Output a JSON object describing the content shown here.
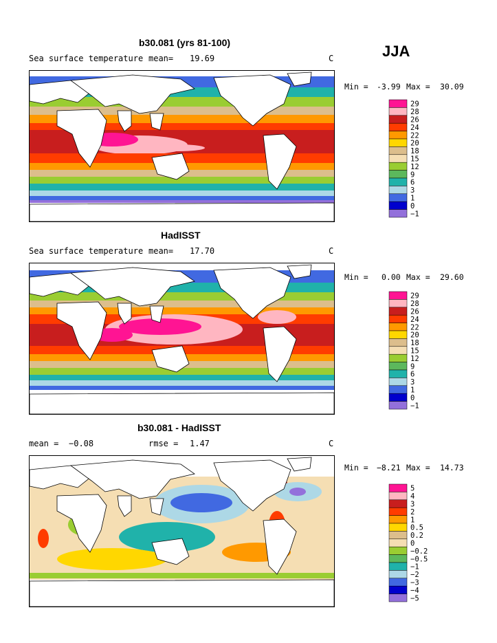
{
  "season": "JJA",
  "chart_data": [
    {
      "type": "heatmap",
      "title": "b30.081 (yrs 81-100)",
      "variable": "Sea surface temperature",
      "mean_label": "mean=",
      "mean_value": "19.69",
      "units": "C",
      "min_label": "Min =",
      "min_value": "-3.99",
      "max_label": "Max =",
      "max_value": "30.09",
      "legend": {
        "levels": [
          "29",
          "28",
          "26",
          "24",
          "22",
          "20",
          "18",
          "15",
          "12",
          "9",
          "6",
          "3",
          "1",
          "0",
          "−1"
        ],
        "colors": [
          "#ff1493",
          "#ffb6c1",
          "#c81e1e",
          "#ff3c00",
          "#ff9900",
          "#ffd700",
          "#dcbe8c",
          "#f5deb3",
          "#9acd32",
          "#5cb85c",
          "#20b2aa",
          "#add8e6",
          "#4169e1",
          "#0000cd",
          "#9370db"
        ]
      }
    },
    {
      "type": "heatmap",
      "title": "HadISST",
      "variable": "Sea surface temperature",
      "mean_label": "mean=",
      "mean_value": "17.70",
      "units": "C",
      "min_label": "Min =",
      "min_value": "0.00",
      "max_label": "Max =",
      "max_value": "29.60",
      "legend": {
        "levels": [
          "29",
          "28",
          "26",
          "24",
          "22",
          "20",
          "18",
          "15",
          "12",
          "9",
          "6",
          "3",
          "1",
          "0",
          "−1"
        ],
        "colors": [
          "#ff1493",
          "#ffb6c1",
          "#c81e1e",
          "#ff3c00",
          "#ff9900",
          "#ffd700",
          "#dcbe8c",
          "#f5deb3",
          "#9acd32",
          "#5cb85c",
          "#20b2aa",
          "#add8e6",
          "#4169e1",
          "#0000cd",
          "#9370db"
        ]
      }
    },
    {
      "type": "heatmap",
      "title": "b30.081 - HadISST",
      "mean_label": "mean =",
      "mean_value": "−0.08",
      "rmse_label": "rmse =",
      "rmse_value": "1.47",
      "units": "C",
      "min_label": "Min =",
      "min_value": "−8.21",
      "max_label": "Max =",
      "max_value": "14.73",
      "legend": {
        "levels": [
          "5",
          "4",
          "3",
          "2",
          "1",
          "0.5",
          "0.2",
          "0",
          "−0.2",
          "−0.5",
          "−1",
          "−2",
          "−3",
          "−4",
          "−5"
        ],
        "colors": [
          "#ff1493",
          "#ffb6c1",
          "#c81e1e",
          "#ff3c00",
          "#ff9900",
          "#ffd700",
          "#dcbe8c",
          "#f5deb3",
          "#9acd32",
          "#5cb85c",
          "#20b2aa",
          "#add8e6",
          "#4169e1",
          "#0000cd",
          "#9370db"
        ]
      }
    }
  ]
}
